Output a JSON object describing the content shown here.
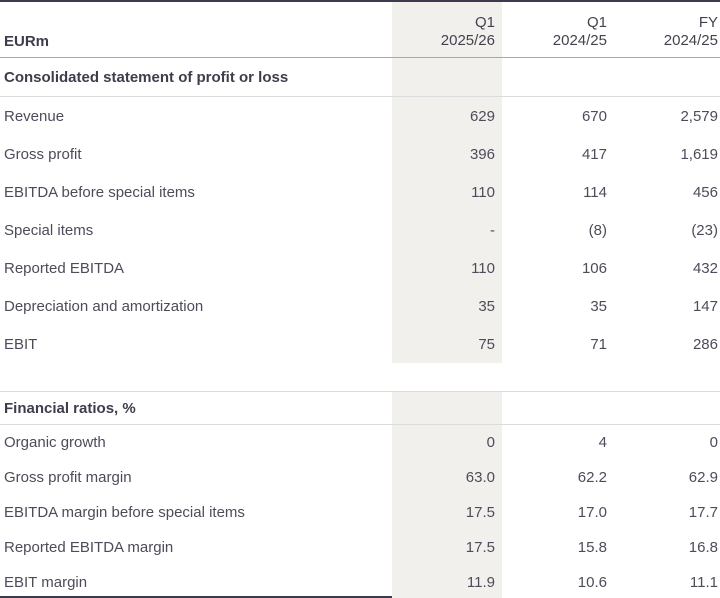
{
  "table": {
    "unit_label": "EURm",
    "columns": [
      {
        "line1": "Q1",
        "line2": "2025/26",
        "highlighted": true
      },
      {
        "line1": "Q1",
        "line2": "2024/25",
        "highlighted": false
      },
      {
        "line1": "FY",
        "line2": "2024/25",
        "highlighted": false
      }
    ],
    "sections": [
      {
        "title": "Consolidated statement of profit or loss",
        "rows": [
          {
            "label": "Revenue",
            "values": [
              "629",
              "670",
              "2,579"
            ]
          },
          {
            "label": "Gross profit",
            "values": [
              "396",
              "417",
              "1,619"
            ]
          },
          {
            "label": "EBITDA before special items",
            "values": [
              "110",
              "114",
              "456"
            ]
          },
          {
            "label": "Special items",
            "values": [
              "-",
              "(8)",
              "(23)"
            ]
          },
          {
            "label": "Reported EBITDA",
            "values": [
              "110",
              "106",
              "432"
            ]
          },
          {
            "label": "Depreciation and amortization",
            "values": [
              "35",
              "35",
              "147"
            ]
          },
          {
            "label": "EBIT",
            "values": [
              "75",
              "71",
              "286"
            ]
          }
        ]
      },
      {
        "title": "Financial ratios, %",
        "rows": [
          {
            "label": "Organic growth",
            "values": [
              "0",
              "4",
              "0"
            ]
          },
          {
            "label": "Gross profit margin",
            "values": [
              "63.0",
              "62.2",
              "62.9"
            ]
          },
          {
            "label": "EBITDA margin before special items",
            "values": [
              "17.5",
              "17.0",
              "17.7"
            ]
          },
          {
            "label": "Reported EBITDA margin",
            "values": [
              "17.5",
              "15.8",
              "16.8"
            ]
          },
          {
            "label": "EBIT margin",
            "values": [
              "11.9",
              "10.6",
              "11.1"
            ]
          }
        ]
      }
    ]
  },
  "colors": {
    "highlight_column": "#f2f0ec",
    "dark_rule": "#3b3b4d",
    "header_rule": "#a7a7ad",
    "section_rule": "#dcdcdf",
    "text": "#4c4c5a",
    "text_bold": "#3d3d4c"
  }
}
